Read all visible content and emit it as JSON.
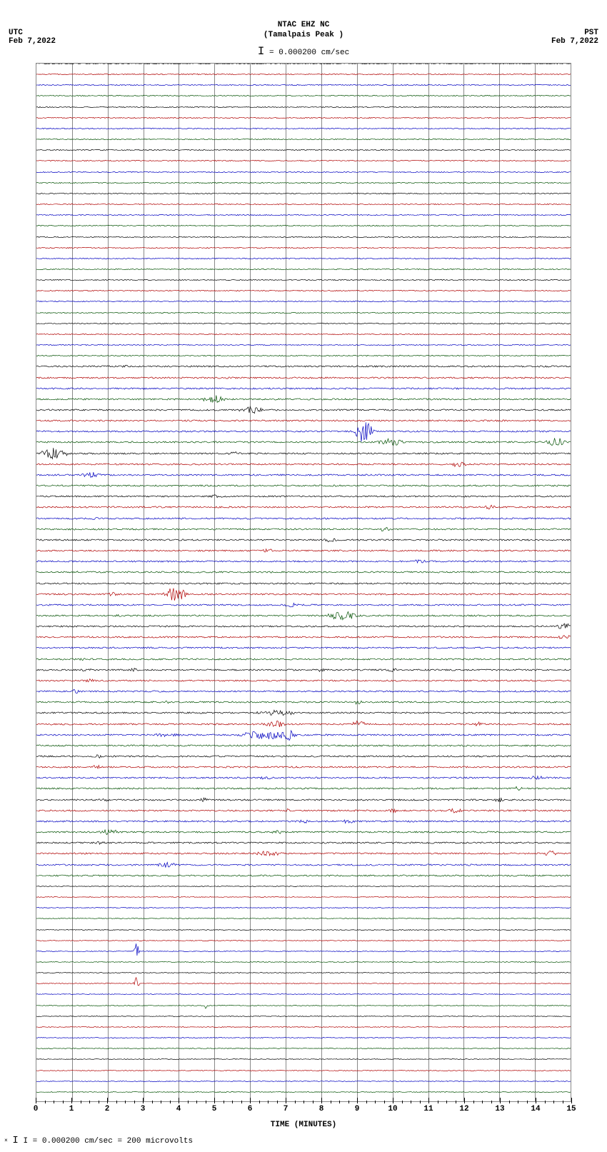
{
  "type": "seismogram-helicorder",
  "station": {
    "code": "NTAC EHZ NC",
    "location": "(Tamalpais Peak )"
  },
  "scale_label": "= 0.000200 cm/sec",
  "left_tz": "UTC",
  "left_date": "Feb 7,2022",
  "right_tz": "PST",
  "right_date": "Feb 7,2022",
  "x_axis_label": "TIME (MINUTES)",
  "x_ticks": [
    0,
    1,
    2,
    3,
    4,
    5,
    6,
    7,
    8,
    9,
    10,
    11,
    12,
    13,
    14,
    15
  ],
  "x_minor_per_major": 4,
  "footer": "I = 0.000200 cm/sec =    200 microvolts",
  "background_color": "#ffffff",
  "grid_color": "#888888",
  "trace_colors": [
    "#000000",
    "#b00000",
    "#0000c0",
    "#005000"
  ],
  "plot": {
    "n_traces": 96,
    "minutes": 15,
    "left_labels": [
      {
        "row": 0,
        "text": "08:00"
      },
      {
        "row": 4,
        "text": "09:00"
      },
      {
        "row": 8,
        "text": "10:00"
      },
      {
        "row": 12,
        "text": "11:00"
      },
      {
        "row": 16,
        "text": "12:00"
      },
      {
        "row": 20,
        "text": "13:00"
      },
      {
        "row": 24,
        "text": "14:00"
      },
      {
        "row": 28,
        "text": "15:00"
      },
      {
        "row": 32,
        "text": "16:00"
      },
      {
        "row": 36,
        "text": "17:00"
      },
      {
        "row": 40,
        "text": "18:00"
      },
      {
        "row": 44,
        "text": "19:00"
      },
      {
        "row": 48,
        "text": "20:00"
      },
      {
        "row": 52,
        "text": "21:00"
      },
      {
        "row": 56,
        "text": "22:00"
      },
      {
        "row": 60,
        "text": "23:00"
      },
      {
        "row": 64,
        "text": "00:00",
        "day": "Feb 8"
      },
      {
        "row": 68,
        "text": "01:00"
      },
      {
        "row": 72,
        "text": "02:00"
      },
      {
        "row": 76,
        "text": "03:00"
      },
      {
        "row": 80,
        "text": "04:00"
      },
      {
        "row": 84,
        "text": "05:00"
      },
      {
        "row": 88,
        "text": "06:00"
      },
      {
        "row": 92,
        "text": "07:00"
      }
    ],
    "right_labels": [
      {
        "row": 0,
        "text": "00:15"
      },
      {
        "row": 4,
        "text": "01:15"
      },
      {
        "row": 8,
        "text": "02:15"
      },
      {
        "row": 12,
        "text": "03:15"
      },
      {
        "row": 16,
        "text": "04:15"
      },
      {
        "row": 20,
        "text": "05:15"
      },
      {
        "row": 24,
        "text": "06:15"
      },
      {
        "row": 28,
        "text": "07:15"
      },
      {
        "row": 32,
        "text": "08:15"
      },
      {
        "row": 36,
        "text": "09:15"
      },
      {
        "row": 40,
        "text": "10:15"
      },
      {
        "row": 44,
        "text": "11:15"
      },
      {
        "row": 48,
        "text": "12:15"
      },
      {
        "row": 52,
        "text": "13:15"
      },
      {
        "row": 56,
        "text": "14:15"
      },
      {
        "row": 60,
        "text": "15:15"
      },
      {
        "row": 64,
        "text": "16:15"
      },
      {
        "row": 68,
        "text": "17:15"
      },
      {
        "row": 72,
        "text": "18:15"
      },
      {
        "row": 76,
        "text": "19:15"
      },
      {
        "row": 80,
        "text": "20:15"
      },
      {
        "row": 84,
        "text": "21:15"
      },
      {
        "row": 88,
        "text": "22:15"
      },
      {
        "row": 92,
        "text": "23:15"
      }
    ],
    "noise_baseline": 0.9,
    "events": [
      {
        "row": 28,
        "start": 2.3,
        "end": 2.6,
        "amp": 3
      },
      {
        "row": 31,
        "start": 4.5,
        "end": 5.4,
        "amp": 6
      },
      {
        "row": 32,
        "start": 5.6,
        "end": 6.5,
        "amp": 5
      },
      {
        "row": 34,
        "start": 8.9,
        "end": 9.5,
        "amp": 16
      },
      {
        "row": 35,
        "start": 9.5,
        "end": 10.4,
        "amp": 5
      },
      {
        "row": 35,
        "start": 14.2,
        "end": 15.0,
        "amp": 6
      },
      {
        "row": 36,
        "start": 0.0,
        "end": 1.0,
        "amp": 8
      },
      {
        "row": 36,
        "start": 5.3,
        "end": 5.8,
        "amp": 3
      },
      {
        "row": 37,
        "start": 11.5,
        "end": 12.2,
        "amp": 4
      },
      {
        "row": 38,
        "start": 1.2,
        "end": 1.9,
        "amp": 4
      },
      {
        "row": 40,
        "start": 4.8,
        "end": 5.3,
        "amp": 3
      },
      {
        "row": 41,
        "start": 12.5,
        "end": 13.0,
        "amp": 3
      },
      {
        "row": 42,
        "start": 1.5,
        "end": 1.8,
        "amp": 2
      },
      {
        "row": 43,
        "start": 9.5,
        "end": 10.0,
        "amp": 3
      },
      {
        "row": 44,
        "start": 8.0,
        "end": 8.5,
        "amp": 3
      },
      {
        "row": 45,
        "start": 6.3,
        "end": 6.7,
        "amp": 3
      },
      {
        "row": 46,
        "start": 10.5,
        "end": 11.0,
        "amp": 3
      },
      {
        "row": 47,
        "start": 1.0,
        "end": 1.3,
        "amp": 2
      },
      {
        "row": 49,
        "start": 3.5,
        "end": 4.3,
        "amp": 10
      },
      {
        "row": 49,
        "start": 1.8,
        "end": 2.4,
        "amp": 3
      },
      {
        "row": 50,
        "start": 6.8,
        "end": 7.5,
        "amp": 3
      },
      {
        "row": 51,
        "start": 8.0,
        "end": 9.2,
        "amp": 6
      },
      {
        "row": 51,
        "start": 2.0,
        "end": 2.5,
        "amp": 2
      },
      {
        "row": 52,
        "start": 14.5,
        "end": 15.2,
        "amp": 4
      },
      {
        "row": 53,
        "start": 14.5,
        "end": 15.2,
        "amp": 4
      },
      {
        "row": 55,
        "start": 1.1,
        "end": 1.5,
        "amp": 2
      },
      {
        "row": 56,
        "start": 1.2,
        "end": 1.6,
        "amp": 3
      },
      {
        "row": 56,
        "start": 2.5,
        "end": 2.9,
        "amp": 3
      },
      {
        "row": 56,
        "start": 7.8,
        "end": 8.2,
        "amp": 3
      },
      {
        "row": 56,
        "start": 9.8,
        "end": 10.2,
        "amp": 3
      },
      {
        "row": 57,
        "start": 1.3,
        "end": 1.7,
        "amp": 3
      },
      {
        "row": 58,
        "start": 0.9,
        "end": 1.3,
        "amp": 3
      },
      {
        "row": 59,
        "start": 3.5,
        "end": 3.8,
        "amp": 2
      },
      {
        "row": 59,
        "start": 8.8,
        "end": 9.2,
        "amp": 3
      },
      {
        "row": 60,
        "start": 6.0,
        "end": 7.5,
        "amp": 4
      },
      {
        "row": 61,
        "start": 6.2,
        "end": 7.2,
        "amp": 5
      },
      {
        "row": 61,
        "start": 8.8,
        "end": 9.3,
        "amp": 5
      },
      {
        "row": 61,
        "start": 12.2,
        "end": 12.7,
        "amp": 4
      },
      {
        "row": 62,
        "start": 3.2,
        "end": 4.2,
        "amp": 3
      },
      {
        "row": 62,
        "start": 5.5,
        "end": 7.5,
        "amp": 6
      },
      {
        "row": 62,
        "start": 6.8,
        "end": 7.3,
        "amp": 8
      },
      {
        "row": 64,
        "start": 1.5,
        "end": 1.9,
        "amp": 3
      },
      {
        "row": 65,
        "start": 1.5,
        "end": 1.9,
        "amp": 3
      },
      {
        "row": 66,
        "start": 6.2,
        "end": 6.7,
        "amp": 3
      },
      {
        "row": 66,
        "start": 13.8,
        "end": 14.3,
        "amp": 3
      },
      {
        "row": 67,
        "start": 13.3,
        "end": 13.8,
        "amp": 3
      },
      {
        "row": 68,
        "start": 1.7,
        "end": 2.1,
        "amp": 3
      },
      {
        "row": 68,
        "start": 4.5,
        "end": 4.9,
        "amp": 3
      },
      {
        "row": 68,
        "start": 12.8,
        "end": 13.2,
        "amp": 3
      },
      {
        "row": 69,
        "start": 6.8,
        "end": 7.3,
        "amp": 3
      },
      {
        "row": 69,
        "start": 9.8,
        "end": 10.2,
        "amp": 3
      },
      {
        "row": 69,
        "start": 11.5,
        "end": 12.0,
        "amp": 4
      },
      {
        "row": 70,
        "start": 7.3,
        "end": 7.8,
        "amp": 3
      },
      {
        "row": 70,
        "start": 8.5,
        "end": 9.0,
        "amp": 3
      },
      {
        "row": 71,
        "start": 1.7,
        "end": 2.4,
        "amp": 4
      },
      {
        "row": 71,
        "start": 6.5,
        "end": 7.0,
        "amp": 3
      },
      {
        "row": 72,
        "start": 1.6,
        "end": 2.0,
        "amp": 3
      },
      {
        "row": 73,
        "start": 6.0,
        "end": 7.0,
        "amp": 4
      },
      {
        "row": 73,
        "start": 14.2,
        "end": 14.7,
        "amp": 4
      },
      {
        "row": 74,
        "start": 3.3,
        "end": 4.0,
        "amp": 4
      },
      {
        "row": 82,
        "start": 2.7,
        "end": 2.9,
        "amp": 12
      },
      {
        "row": 85,
        "start": 2.7,
        "end": 2.9,
        "amp": 10
      },
      {
        "row": 87,
        "start": 4.7,
        "end": 4.8,
        "amp": 6
      }
    ],
    "noise_scale_rows": [
      {
        "from": 0,
        "to": 27,
        "scale": 0.8
      },
      {
        "from": 28,
        "to": 75,
        "scale": 1.2
      },
      {
        "from": 76,
        "to": 95,
        "scale": 0.6
      }
    ]
  }
}
